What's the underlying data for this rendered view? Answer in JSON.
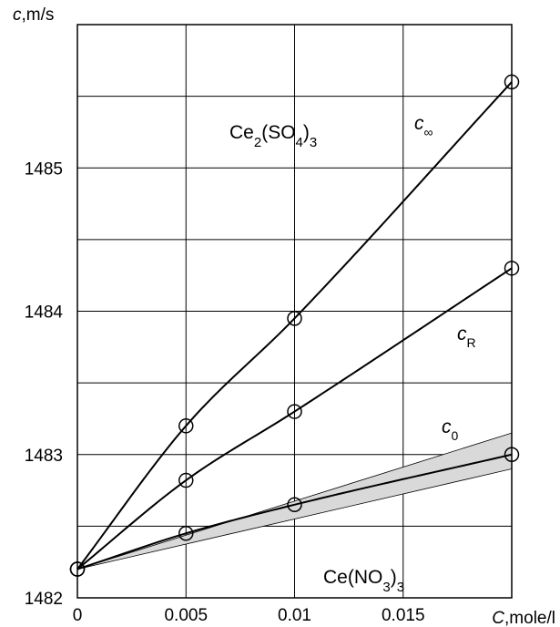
{
  "chart_data": {
    "type": "line",
    "title": "",
    "xlabel": "C,mole/l",
    "ylabel": "c,m/s",
    "xlim": [
      0,
      0.02
    ],
    "ylim": [
      1482,
      1486
    ],
    "x_ticks": [
      0,
      0.005,
      0.01,
      0.015
    ],
    "x_tick_labels": [
      "0",
      "0.005",
      "0.01",
      "0.015"
    ],
    "y_ticks": [
      1482,
      1483,
      1484,
      1485
    ],
    "y_tick_labels": [
      "1482",
      "1483",
      "1484",
      "1485"
    ],
    "grid": true,
    "series": [
      {
        "name": "c∞",
        "label_main": "c",
        "label_sub": "∞",
        "x": [
          0,
          0.005,
          0.01,
          0.02
        ],
        "y": [
          1482.2,
          1483.2,
          1483.95,
          1485.6
        ],
        "markers": "circle"
      },
      {
        "name": "cR",
        "label_main": "c",
        "label_sub": "R",
        "x": [
          0,
          0.005,
          0.01,
          0.02
        ],
        "y": [
          1482.2,
          1482.82,
          1483.3,
          1484.3
        ],
        "markers": "circle"
      },
      {
        "name": "c0",
        "label_main": "c",
        "label_sub": "0",
        "x": [
          0,
          0.005,
          0.01,
          0.02
        ],
        "y": [
          1482.2,
          1482.45,
          1482.65,
          1483.0
        ],
        "markers": "circle",
        "band_upper": [
          1482.2,
          1483.15
        ],
        "band_lower": [
          1482.2,
          1482.9
        ],
        "band_color": "#d9d9d9"
      }
    ],
    "annotations": [
      {
        "id": "ce2so43",
        "parts": [
          {
            "text": "Ce",
            "sub": false
          },
          {
            "text": "2",
            "sub": true
          },
          {
            "text": "(SO",
            "sub": false
          },
          {
            "text": "4",
            "sub": true
          },
          {
            "text": ")",
            "sub": false
          },
          {
            "text": "3",
            "sub": true
          }
        ]
      },
      {
        "id": "cerno33",
        "parts": [
          {
            "text": "Ce(NO",
            "sub": false
          },
          {
            "text": "3",
            "sub": true
          },
          {
            "text": ")",
            "sub": false
          },
          {
            "text": "3",
            "sub": true
          }
        ]
      }
    ]
  }
}
